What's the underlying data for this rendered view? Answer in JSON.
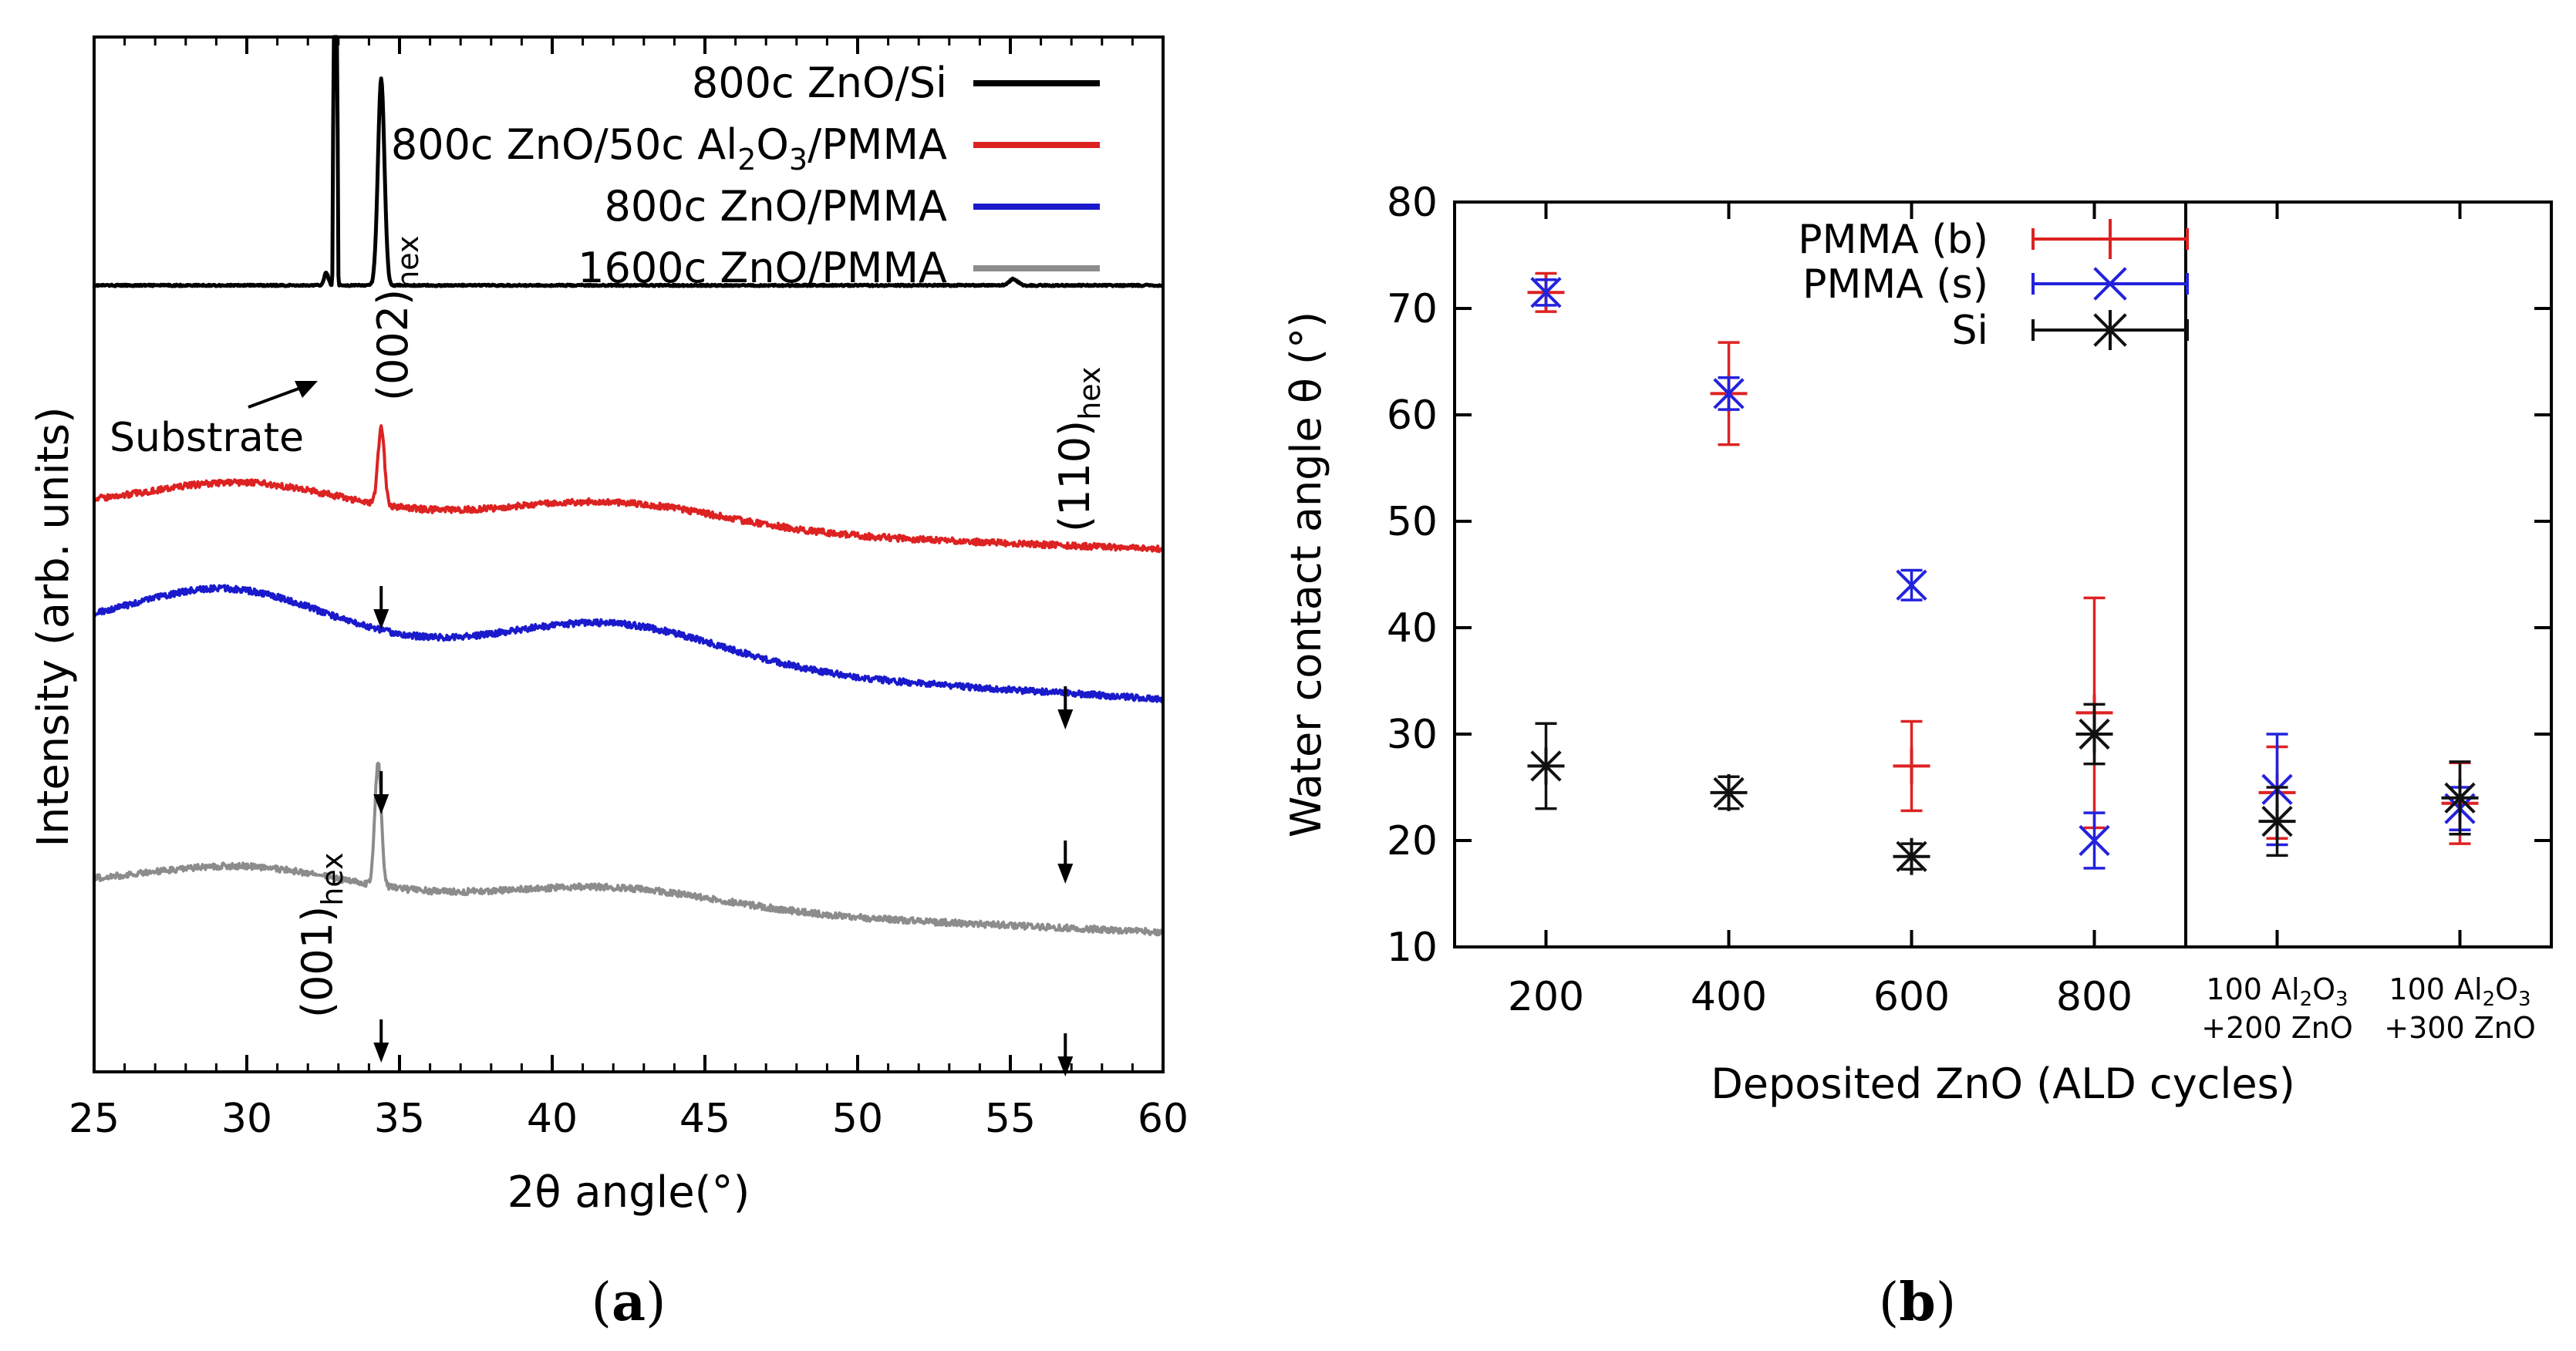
{
  "chart_data": [
    {
      "panel": "a",
      "panel_label": "(a)",
      "panel_letter": "a",
      "type": "line",
      "xlabel": "2θ angle(°)",
      "ylabel": "Intensity (arb. units)",
      "xlim": [
        25,
        60
      ],
      "xticks": [
        25,
        30,
        35,
        40,
        45,
        50,
        55,
        60
      ],
      "yticks": [],
      "series": [
        {
          "name": "800c ZnO/Si",
          "color": "#000000",
          "baseline_start": 0.76,
          "baseline_end": 0.76,
          "peaks": [
            {
              "x": 32.9,
              "height": 5.0,
              "width": 0.04
            },
            {
              "x": 34.4,
              "height": 0.2,
              "width": 0.15
            },
            {
              "x": 32.6,
              "height": 0.012,
              "width": 0.1
            },
            {
              "x": 55.1,
              "height": 0.006,
              "width": 0.2
            }
          ],
          "hump": null
        },
        {
          "name": "800c ZnO/50c Al2O3/PMMA",
          "color": "#dd2222",
          "baseline_start": 0.545,
          "baseline_end": 0.505,
          "peaks": [
            {
              "x": 34.4,
              "height": 0.075,
              "width": 0.15
            }
          ],
          "hump": {
            "centers": [
              30,
              42
            ],
            "heights": [
              0.03,
              0.025
            ]
          }
        },
        {
          "name": "800c ZnO/PMMA",
          "color": "#1a1acc",
          "baseline_start": 0.425,
          "baseline_end": 0.36,
          "peaks": [],
          "hump": {
            "centers": [
              29.5,
              42
            ],
            "heights": [
              0.05,
              0.04
            ]
          }
        },
        {
          "name": "1600c ZnO/PMMA",
          "color": "#8c8c8c",
          "baseline_start": 0.18,
          "baseline_end": 0.135,
          "peaks": [
            {
              "x": 34.3,
              "height": 0.12,
              "width": 0.15
            }
          ],
          "hump": {
            "centers": [
              30,
              42
            ],
            "heights": [
              0.025,
              0.02
            ]
          }
        }
      ],
      "legend": {
        "placement": "top-right",
        "entries": [
          {
            "text": "800c ZnO/Si",
            "sub": "",
            "tail": "",
            "color": "#000000"
          },
          {
            "text": "800c ZnO/50c Al",
            "sub": "2",
            "tail": "O",
            "sub2": "3",
            "tail2": "/PMMA",
            "color": "#dd2222"
          },
          {
            "text": "800c ZnO/PMMA",
            "sub": "",
            "tail": "",
            "color": "#1a1acc"
          },
          {
            "text": "1600c ZnO/PMMA",
            "sub": "",
            "tail": "",
            "color": "#8c8c8c"
          }
        ]
      },
      "annotations": {
        "substrate": "Substrate",
        "peak_002": {
          "main": "(002)",
          "sub": "hex"
        },
        "peak_110": {
          "main": "(110)",
          "sub": "hex"
        },
        "peak_001": {
          "main": "(001)",
          "sub": "hex"
        }
      },
      "down_arrows": [
        {
          "x": 34.4,
          "curve": "800c ZnO/50c Al2O3/PMMA"
        },
        {
          "x": 34.4,
          "curve": "800c ZnO/PMMA"
        },
        {
          "x": 34.4,
          "curve": "1600c ZnO/PMMA"
        },
        {
          "x": 56.8,
          "curve": "800c ZnO/50c Al2O3/PMMA"
        },
        {
          "x": 56.8,
          "curve": "800c ZnO/PMMA"
        },
        {
          "x": 56.8,
          "curve": "1600c ZnO/PMMA"
        }
      ]
    },
    {
      "panel": "b",
      "panel_label": "(b)",
      "panel_letter": "b",
      "type": "scatter",
      "xlabel": "Deposited ZnO (ALD cycles)",
      "ylabel": "Water contact angle θ (°)",
      "ylim": [
        10,
        80
      ],
      "yticks": [
        10,
        20,
        30,
        40,
        50,
        60,
        70,
        80
      ],
      "categories": [
        "200",
        "400",
        "600",
        "800",
        "100 Al2O3 +200 ZnO",
        "100 Al2O3 +300 ZnO"
      ],
      "category_labels": [
        {
          "line1": "200"
        },
        {
          "line1": "400"
        },
        {
          "line1": "600"
        },
        {
          "line1": "800"
        },
        {
          "pre": "100 Al",
          "sub1": "2",
          "mid": "O",
          "sub2": "3",
          "line2": "+200 ZnO"
        },
        {
          "pre": "100 Al",
          "sub1": "2",
          "mid": "O",
          "sub2": "3",
          "line2": "+300 ZnO"
        }
      ],
      "series": [
        {
          "name": "PMMA (b)",
          "marker": "plus",
          "color": "#dd2222",
          "values": [
            71.5,
            62,
            27,
            32,
            24.5,
            23.5
          ],
          "errors": [
            1.8,
            4.8,
            4.2,
            10.8,
            4.3,
            3.8
          ]
        },
        {
          "name": "PMMA (s)",
          "marker": "x",
          "color": "#2222dd",
          "values": [
            71.5,
            62,
            44,
            20,
            24.8,
            23
          ],
          "errors": [
            1.2,
            1.5,
            1.4,
            2.6,
            5.2,
            2
          ]
        },
        {
          "name": "Si",
          "marker": "star",
          "color": "#111111",
          "values": [
            27,
            24.5,
            18.5,
            30,
            21.8,
            24
          ],
          "errors": [
            4,
            1.5,
            1.2,
            2.8,
            3.2,
            3.4
          ]
        }
      ],
      "legend": {
        "placement": "top-center"
      }
    }
  ]
}
